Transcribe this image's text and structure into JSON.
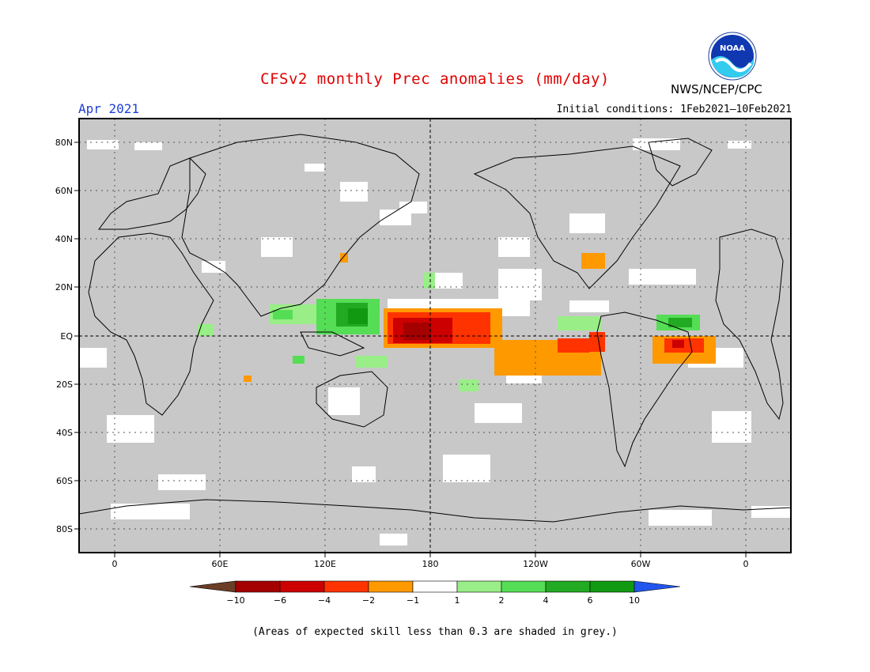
{
  "header": {
    "title": "CFSv2 monthly Prec anomalies (mm/day)",
    "month": "Apr 2021",
    "initial_conditions": "Initial conditions: 1Feb2021–10Feb2021",
    "agency": "NWS/NCEP/CPC",
    "logo_text": "NOAA"
  },
  "map": {
    "lat_labels": [
      "80N",
      "60N",
      "40N",
      "20N",
      "EQ",
      "20S",
      "40S",
      "60S",
      "80S"
    ],
    "lon_labels": [
      "0",
      "60E",
      "120E",
      "180",
      "120W",
      "60W",
      "0"
    ],
    "land_color": "#c8c8c8",
    "ocean_color": "#c8c8c8"
  },
  "colorbar": {
    "labels": [
      "−10",
      "−6",
      "−4",
      "−2",
      "−1",
      "1",
      "2",
      "4",
      "6",
      "10"
    ],
    "colors": [
      "#6b3d26",
      "#a50000",
      "#cc0000",
      "#ff3300",
      "#ff9900",
      "#ffffff",
      "#99ee88",
      "#55dd55",
      "#22aa22",
      "#119911",
      "#2255ee"
    ]
  },
  "footnote": "(Areas of expected skill less than 0.3 are shaded in grey.)"
}
